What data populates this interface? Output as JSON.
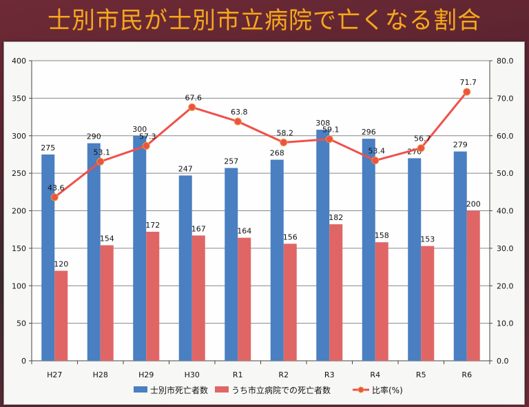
{
  "title": "士別市民が士別市立病院で亡くなる割合",
  "chart_data": {
    "type": "bar",
    "title": "士別市民が士別市立病院で亡くなる割合",
    "categories": [
      "H27",
      "H28",
      "H29",
      "H30",
      "R1",
      "R2",
      "R3",
      "R4",
      "R5",
      "R6"
    ],
    "series": [
      {
        "name": "士別市死亡者数",
        "type": "bar",
        "axis": "left",
        "color": "#4a7fc1",
        "values": [
          275,
          290,
          300,
          247,
          257,
          268,
          308,
          296,
          270,
          279
        ]
      },
      {
        "name": "うち市立病院での死亡者数",
        "type": "bar",
        "axis": "left",
        "color": "#e06666",
        "values": [
          120,
          154,
          172,
          167,
          164,
          156,
          182,
          158,
          153,
          200
        ]
      },
      {
        "name": "比率(%)",
        "type": "line",
        "axis": "right",
        "color": "#f0504a",
        "values": [
          43.6,
          53.1,
          57.3,
          67.6,
          63.8,
          58.2,
          59.1,
          53.4,
          56.7,
          71.7
        ]
      }
    ],
    "left_axis": {
      "ylim": [
        0,
        400
      ],
      "ticks": [
        "0",
        "50",
        "100",
        "150",
        "200",
        "250",
        "300",
        "350",
        "400"
      ]
    },
    "right_axis": {
      "ylim": [
        0,
        80
      ],
      "ticks": [
        "0.0",
        "10.0",
        "20.0",
        "30.0",
        "40.0",
        "50.0",
        "60.0",
        "70.0",
        "80.0"
      ]
    },
    "xlabel": "",
    "ylabel": "",
    "grid": true,
    "legend_position": "bottom"
  }
}
